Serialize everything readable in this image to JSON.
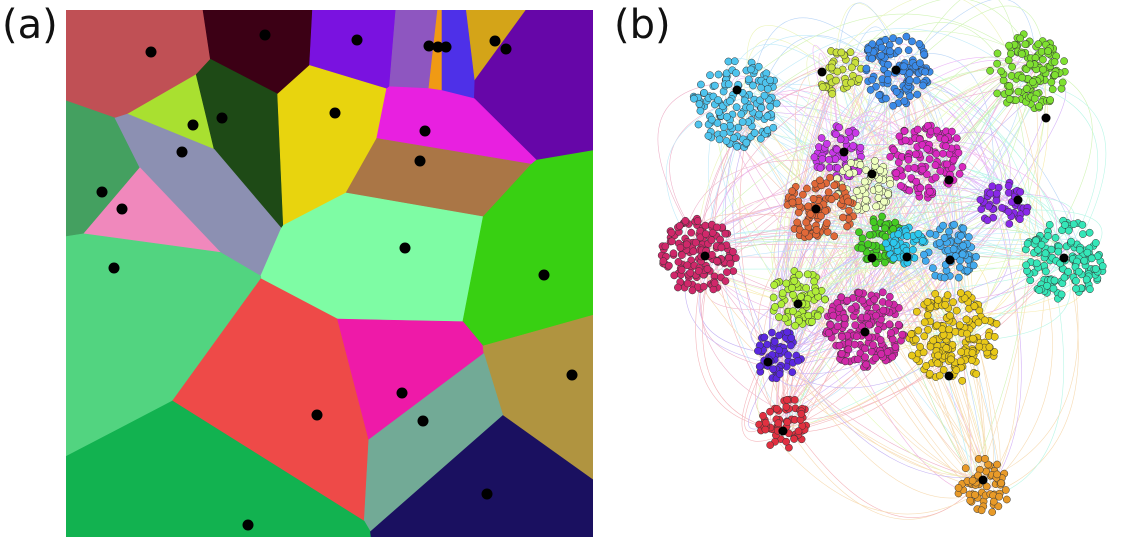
{
  "panels": [
    {
      "label": "(a)"
    },
    {
      "label": "(b)"
    }
  ],
  "voronoi": {
    "region_colors": [
      "#c05055",
      "#3c0015",
      "#7a12e0",
      "#8e56c0",
      "#f09a14",
      "#4e30e8",
      "#d4a418",
      "#6606a8",
      "#a9e030",
      "#1e4a16",
      "#e8d40e",
      "#e820e0",
      "#44a060",
      "#8c90b2",
      "#aa7646",
      "#f088bc",
      "#7efca4",
      "#38d012",
      "#52d480",
      "#ee4a48",
      "#ee1aa8",
      "#b09440",
      "#72aa96",
      "#12b250",
      "#1a1060"
    ],
    "site_color": "#000000"
  },
  "network": {
    "communities": [
      {
        "color": "#4ec4ee"
      },
      {
        "color": "#c8e03c"
      },
      {
        "color": "#3a8ae8"
      },
      {
        "color": "#7ee030"
      },
      {
        "color": "#c838e8"
      },
      {
        "color": "#d828c0"
      },
      {
        "color": "#eeffbe"
      },
      {
        "color": "#e06838"
      },
      {
        "color": "#8828e8"
      },
      {
        "color": "#d0286a"
      },
      {
        "color": "#34e6b8"
      },
      {
        "color": "#44cc22"
      },
      {
        "color": "#2cc8ee"
      },
      {
        "color": "#42aaee"
      },
      {
        "color": "#b0ee38"
      },
      {
        "color": "#d028a8"
      },
      {
        "color": "#e8c818"
      },
      {
        "color": "#5a28e0"
      },
      {
        "color": "#e03040"
      },
      {
        "color": "#e89a28"
      }
    ],
    "hub_color": "#000000"
  }
}
